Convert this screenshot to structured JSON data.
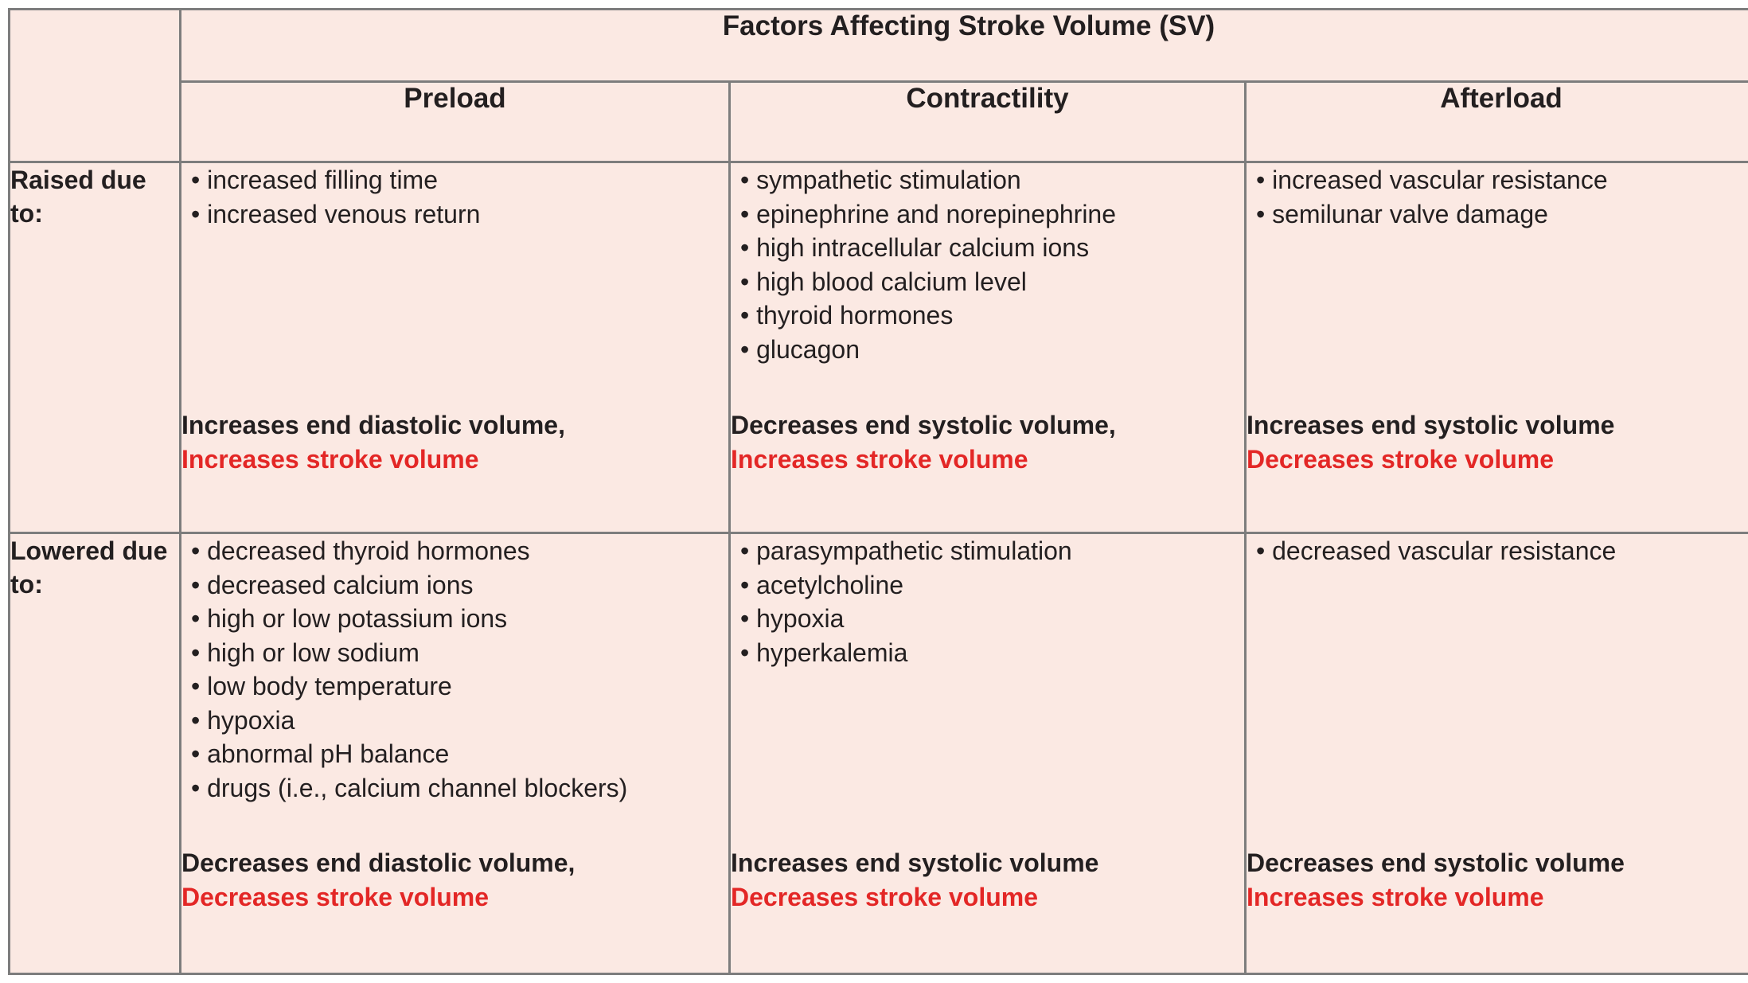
{
  "figure": {
    "title": "Factors Affecting Stroke Volume (SV)",
    "columns": [
      "Preload",
      "Contractility",
      "Afterload"
    ],
    "rows": [
      {
        "label": "Raised due to:",
        "cells": [
          {
            "bullets": [
              "increased filling time",
              "increased venous return"
            ],
            "volume_effect": "Increases end diastolic volume,",
            "stroke_effect": "Increases stroke volume"
          },
          {
            "bullets": [
              "sympathetic stimulation",
              "epinephrine and norepinephrine",
              "high intracellular calcium ions",
              "high blood calcium level",
              "thyroid hormones",
              "glucagon"
            ],
            "volume_effect": "Decreases end systolic volume,",
            "stroke_effect": "Increases stroke volume"
          },
          {
            "bullets": [
              "increased vascular resistance",
              "semilunar valve damage"
            ],
            "volume_effect": "Increases end systolic volume",
            "stroke_effect": "Decreases stroke volume"
          }
        ]
      },
      {
        "label": "Lowered due to:",
        "cells": [
          {
            "bullets": [
              "decreased thyroid hormones",
              "decreased calcium ions",
              "high or low potassium ions",
              "high or low sodium",
              "low body temperature",
              "hypoxia",
              "abnormal pH balance",
              "drugs (i.e., calcium channel blockers)"
            ],
            "volume_effect": "Decreases end diastolic volume,",
            "stroke_effect": "Decreases stroke volume"
          },
          {
            "bullets": [
              "parasympathetic stimulation",
              "acetylcholine",
              "hypoxia",
              "hyperkalemia"
            ],
            "volume_effect": "Increases end systolic volume",
            "stroke_effect": "Decreases stroke volume"
          },
          {
            "bullets": [
              "decreased vascular resistance"
            ],
            "volume_effect": "Decreases end systolic volume",
            "stroke_effect": "Increases stroke volume"
          }
        ]
      }
    ],
    "colors": {
      "title_bg": "#fbe6e0",
      "header_bg": "#f6cfc4",
      "cell_bg": "#fbe9e3",
      "border": "#7d7d7d",
      "stroke_red": "#e32726",
      "text": "#231f20"
    }
  }
}
